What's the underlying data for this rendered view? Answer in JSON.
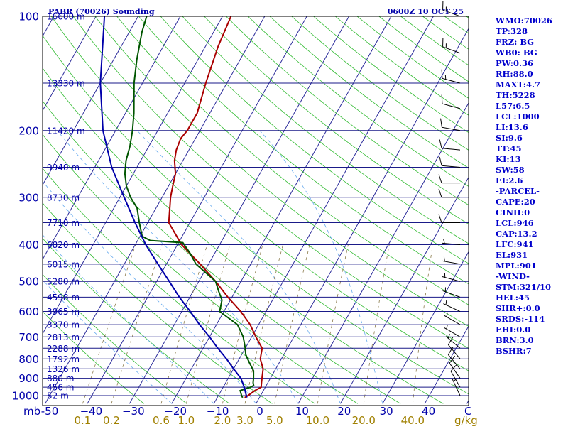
{
  "chart_data": {
    "type": "skew-t log-p sounding",
    "title": "PABR (70026) Sounding",
    "valid_time": "0600Z 10 OCT 25",
    "pressure_axis": {
      "unit": "mb",
      "ticks": [
        100,
        200,
        300,
        400,
        500,
        600,
        700,
        800,
        900,
        1000
      ],
      "range": [
        100,
        1050
      ]
    },
    "temperature_axis": {
      "unit": "C",
      "ticks": [
        -50,
        -40,
        -30,
        -20,
        -10,
        0,
        10,
        20,
        30,
        40
      ],
      "labels": [
        "-50",
        "−40",
        "−30",
        "−20",
        "−10",
        "0",
        "10",
        "20",
        "30",
        "40"
      ]
    },
    "mixing_ratio_axis": {
      "unit": "g/kg",
      "ticks": [
        0.1,
        0.2,
        0.6,
        1.0,
        2.0,
        3.0,
        5.0,
        10.0,
        20.0,
        40.0
      ],
      "labels": [
        "0.1",
        "0.2",
        "0.6",
        "1.0",
        "2.0",
        "3.0",
        "5.0",
        "10.0",
        "20.0",
        "40.0"
      ]
    },
    "height_labels": [
      {
        "p": 100,
        "label": "16600 m"
      },
      {
        "p": 150,
        "label": "13330 m"
      },
      {
        "p": 200,
        "label": "11420 m"
      },
      {
        "p": 250,
        "label": "9940 m"
      },
      {
        "p": 300,
        "label": "8730 m"
      },
      {
        "p": 350,
        "label": "7710 m"
      },
      {
        "p": 400,
        "label": "6820 m"
      },
      {
        "p": 450,
        "label": "6015 m"
      },
      {
        "p": 500,
        "label": "5280 m"
      },
      {
        "p": 550,
        "label": "4598 m"
      },
      {
        "p": 600,
        "label": "3965 m"
      },
      {
        "p": 650,
        "label": "3370 m"
      },
      {
        "p": 700,
        "label": "2813 m"
      },
      {
        "p": 750,
        "label": "2288 m"
      },
      {
        "p": 800,
        "label": "1792 m"
      },
      {
        "p": 850,
        "label": "1326 m"
      },
      {
        "p": 900,
        "label": "880 m"
      },
      {
        "p": 950,
        "label": "456 m"
      },
      {
        "p": 1000,
        "label": "52 m"
      }
    ],
    "series": [
      {
        "name": "temperature",
        "color": "#aa0000",
        "points": [
          [
            1012,
            -3.5
          ],
          [
            1000,
            -3
          ],
          [
            985,
            -2.5
          ],
          [
            970,
            -2
          ],
          [
            950,
            -1
          ],
          [
            925,
            -1.5
          ],
          [
            900,
            -2
          ],
          [
            850,
            -3
          ],
          [
            800,
            -5
          ],
          [
            750,
            -6
          ],
          [
            700,
            -9
          ],
          [
            650,
            -12
          ],
          [
            600,
            -16
          ],
          [
            550,
            -21
          ],
          [
            500,
            -26
          ],
          [
            450,
            -32
          ],
          [
            400,
            -39
          ],
          [
            350,
            -45
          ],
          [
            300,
            -48
          ],
          [
            280,
            -49
          ],
          [
            260,
            -50
          ],
          [
            240,
            -52
          ],
          [
            225,
            -53
          ],
          [
            210,
            -53.5
          ],
          [
            200,
            -53
          ],
          [
            180,
            -53
          ],
          [
            150,
            -55
          ],
          [
            120,
            -57
          ],
          [
            100,
            -58
          ]
        ]
      },
      {
        "name": "dewpoint",
        "color": "#005500",
        "points": [
          [
            1012,
            -4
          ],
          [
            1000,
            -4.5
          ],
          [
            985,
            -5
          ],
          [
            970,
            -5.5
          ],
          [
            960,
            -4.5
          ],
          [
            950,
            -3.5
          ],
          [
            940,
            -3
          ],
          [
            925,
            -3.5
          ],
          [
            900,
            -4
          ],
          [
            880,
            -4.5
          ],
          [
            860,
            -5
          ],
          [
            850,
            -5.5
          ],
          [
            820,
            -7
          ],
          [
            800,
            -8
          ],
          [
            780,
            -9
          ],
          [
            750,
            -10
          ],
          [
            700,
            -12
          ],
          [
            650,
            -15
          ],
          [
            600,
            -21
          ],
          [
            560,
            -22
          ],
          [
            530,
            -24
          ],
          [
            500,
            -26
          ],
          [
            450,
            -33
          ],
          [
            420,
            -36
          ],
          [
            395,
            -39
          ],
          [
            390,
            -47
          ],
          [
            380,
            -49.5
          ],
          [
            350,
            -52
          ],
          [
            320,
            -54.5
          ],
          [
            300,
            -57.5
          ],
          [
            280,
            -60
          ],
          [
            260,
            -62
          ],
          [
            240,
            -63.5
          ],
          [
            220,
            -64.5
          ],
          [
            200,
            -66
          ],
          [
            180,
            -68
          ],
          [
            150,
            -72
          ],
          [
            130,
            -74.5
          ],
          [
            110,
            -77
          ],
          [
            100,
            -78
          ]
        ]
      },
      {
        "name": "parcel",
        "color": "#0000aa",
        "points": [
          [
            1012,
            -3
          ],
          [
            950,
            -5
          ],
          [
            900,
            -7
          ],
          [
            850,
            -10
          ],
          [
            800,
            -13
          ],
          [
            750,
            -16.5
          ],
          [
            700,
            -20
          ],
          [
            650,
            -24
          ],
          [
            600,
            -28
          ],
          [
            550,
            -32.5
          ],
          [
            500,
            -37
          ],
          [
            450,
            -42
          ],
          [
            400,
            -47.5
          ],
          [
            350,
            -53
          ],
          [
            300,
            -59
          ],
          [
            250,
            -66
          ],
          [
            200,
            -73
          ],
          [
            150,
            -80
          ],
          [
            100,
            -88
          ]
        ]
      }
    ],
    "stats": [
      "WMO:70026",
      "TP:328",
      "FRZ: BG",
      "WB0: BG",
      "PW:0.36",
      "RH:88.0",
      "MAXT:4.7",
      "TH:5228",
      "L57:6.5",
      "LCL:1000",
      "LI:13.6",
      "SI:9.6",
      "TT:45",
      "KI:13",
      "SW:58",
      "EI:2.6",
      "-PARCEL-",
      "CAPE:20",
      "CINH:0",
      "LCL:946",
      "CAP:13.2",
      "LFC:941",
      "EL:931",
      "MPL:901",
      "-WIND-",
      "STM:321/10",
      "HEL:45",
      "SHR+:0.0",
      "SRDS:-114",
      "EHI:0.0",
      "BRN:3.0",
      "BSHR:7"
    ],
    "wind_barbs": [
      {
        "p": 100,
        "dir": 290,
        "spd": 15
      },
      {
        "p": 125,
        "dir": 290,
        "spd": 15
      },
      {
        "p": 150,
        "dir": 285,
        "spd": 15
      },
      {
        "p": 175,
        "dir": 285,
        "spd": 10
      },
      {
        "p": 200,
        "dir": 280,
        "spd": 10
      },
      {
        "p": 225,
        "dir": 275,
        "spd": 10
      },
      {
        "p": 250,
        "dir": 275,
        "spd": 10
      },
      {
        "p": 275,
        "dir": 270,
        "spd": 10
      },
      {
        "p": 300,
        "dir": 270,
        "spd": 10
      },
      {
        "p": 350,
        "dir": 270,
        "spd": 10
      },
      {
        "p": 400,
        "dir": 275,
        "spd": 5
      },
      {
        "p": 450,
        "dir": 280,
        "spd": 5
      },
      {
        "p": 500,
        "dir": 285,
        "spd": 5
      },
      {
        "p": 550,
        "dir": 290,
        "spd": 5
      },
      {
        "p": 600,
        "dir": 295,
        "spd": 5
      },
      {
        "p": 650,
        "dir": 300,
        "spd": 5
      },
      {
        "p": 700,
        "dir": 300,
        "spd": 5
      },
      {
        "p": 750,
        "dir": 310,
        "spd": 5
      },
      {
        "p": 800,
        "dir": 320,
        "spd": 10
      },
      {
        "p": 850,
        "dir": 320,
        "spd": 10
      },
      {
        "p": 900,
        "dir": 325,
        "spd": 10
      },
      {
        "p": 950,
        "dir": 330,
        "spd": 10
      },
      {
        "p": 1000,
        "dir": 335,
        "spd": 5
      }
    ]
  },
  "labels": {
    "mb": "mb",
    "c": "C",
    "gkg": "g/kg"
  }
}
